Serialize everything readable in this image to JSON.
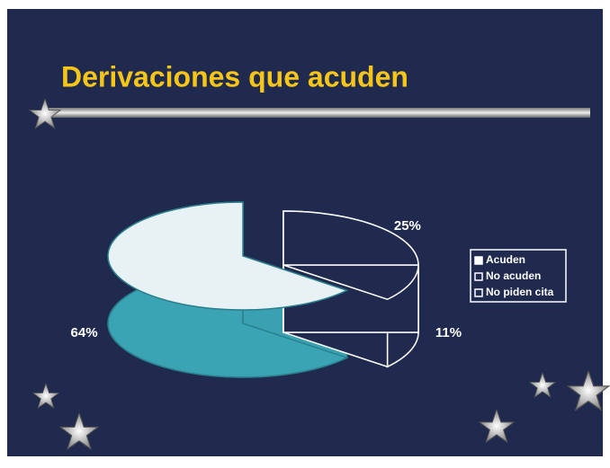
{
  "chart_data": {
    "type": "pie",
    "title": "Derivaciones que acuden",
    "categories": [
      "Acuden",
      "No acuden",
      "No piden cita"
    ],
    "values": [
      64,
      11,
      25
    ],
    "value_labels": [
      "64%",
      "11%",
      "25%"
    ],
    "colors": [
      "#3aa3b4",
      "#1f2a4e",
      "#1f2a4e"
    ],
    "legend": "right"
  }
}
